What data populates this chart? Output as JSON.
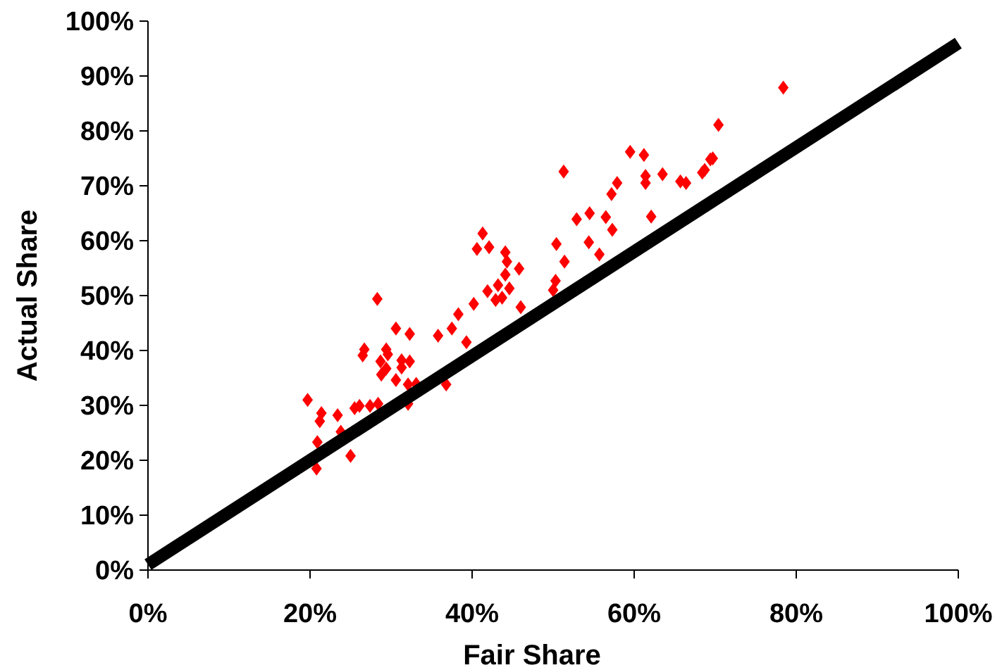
{
  "chart_data": {
    "type": "scatter",
    "xlabel": "Fair Share",
    "ylabel": "Actual Share",
    "xlim": [
      0,
      100
    ],
    "ylim": [
      0,
      100
    ],
    "xticks": [
      {
        "value": 0,
        "label": "0%"
      },
      {
        "value": 20,
        "label": "20%"
      },
      {
        "value": 40,
        "label": "40%"
      },
      {
        "value": 60,
        "label": "60%"
      },
      {
        "value": 80,
        "label": "80%"
      },
      {
        "value": 100,
        "label": "100%"
      }
    ],
    "yticks": [
      {
        "value": 0,
        "label": "0%"
      },
      {
        "value": 10,
        "label": "10%"
      },
      {
        "value": 20,
        "label": "20%"
      },
      {
        "value": 30,
        "label": "30%"
      },
      {
        "value": 40,
        "label": "40%"
      },
      {
        "value": 50,
        "label": "50%"
      },
      {
        "value": 60,
        "label": "60%"
      },
      {
        "value": 70,
        "label": "70%"
      },
      {
        "value": 80,
        "label": "80%"
      },
      {
        "value": 90,
        "label": "90%"
      },
      {
        "value": 100,
        "label": "100%"
      }
    ],
    "grid": false,
    "series": [
      {
        "color": "#ff0000",
        "marker": "diamond",
        "x": [
          19.7,
          21.4,
          21.2,
          23.4,
          20.9,
          23.8,
          20.8,
          25.0,
          25.5,
          26.1,
          27.4,
          28.4,
          28.3,
          26.7,
          26.5,
          28.7,
          29.4,
          29.6,
          28.8,
          29.4,
          30.6,
          32.3,
          30.6,
          31.3,
          31.3,
          32.3,
          32.1,
          33.1,
          32.1,
          36.8,
          35.8,
          37.5,
          38.3,
          39.3,
          40.2,
          41.9,
          41.3,
          40.6,
          42.1,
          44.1,
          44.3,
          45.8,
          44.1,
          43.2,
          42.9,
          43.7,
          44.6,
          46.0,
          50.4,
          51.4,
          50.3,
          50.0,
          52.9,
          54.5,
          56.5,
          57.3,
          54.4,
          55.7,
          62.1,
          51.3,
          59.5,
          61.2,
          57.9,
          57.2,
          61.4,
          61.4,
          63.5,
          65.7,
          66.4,
          68.4,
          68.7,
          69.4,
          69.7,
          70.4,
          78.4
        ],
        "values": [
          31.0,
          28.6,
          27.1,
          28.2,
          23.3,
          25.2,
          18.5,
          20.8,
          29.5,
          29.9,
          29.9,
          30.3,
          49.4,
          40.2,
          39.1,
          38.0,
          40.2,
          39.3,
          35.6,
          36.7,
          44.0,
          43.0,
          34.6,
          38.2,
          36.9,
          38.0,
          33.8,
          33.9,
          30.3,
          33.8,
          42.7,
          44.0,
          46.6,
          41.5,
          48.5,
          50.8,
          61.3,
          58.5,
          58.8,
          57.9,
          56.2,
          54.9,
          53.8,
          51.9,
          49.2,
          49.6,
          51.3,
          47.9,
          59.4,
          56.2,
          52.7,
          51.0,
          63.9,
          65.0,
          64.3,
          62.0,
          59.7,
          57.5,
          64.4,
          72.6,
          76.2,
          75.6,
          70.5,
          68.5,
          71.8,
          70.5,
          72.1,
          70.8,
          70.5,
          72.4,
          72.9,
          74.8,
          75.0,
          81.1,
          87.9
        ]
      },
      {
        "type": "line",
        "color": "#000000",
        "marker": "none",
        "line_style": "solid",
        "x": [
          0,
          100
        ],
        "values": [
          1,
          96
        ]
      }
    ]
  }
}
